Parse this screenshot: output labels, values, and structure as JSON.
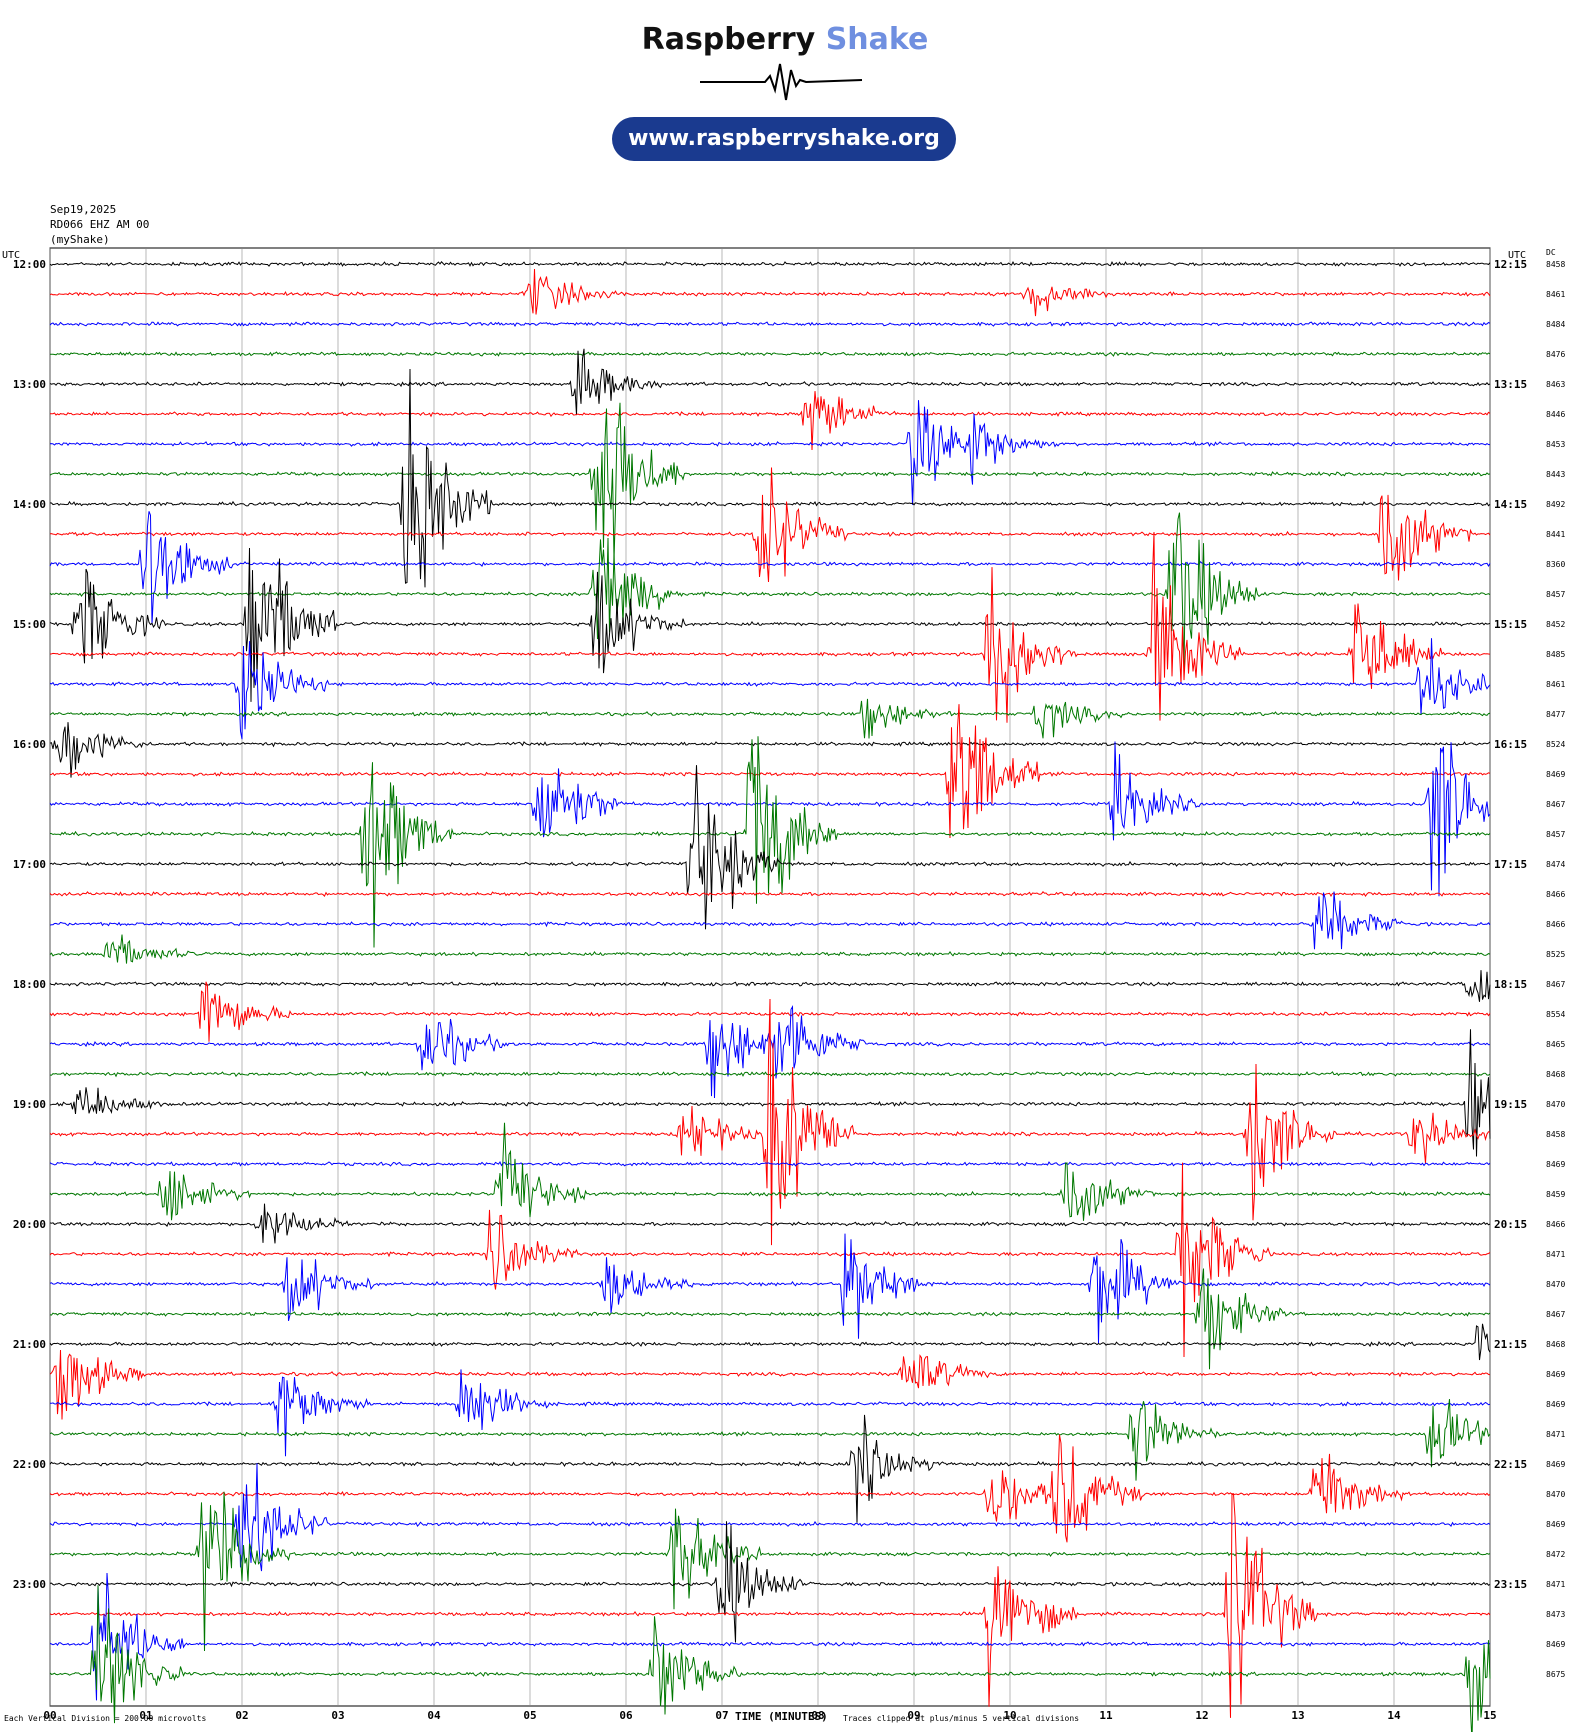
{
  "logo": {
    "brand_part1": "Raspberry",
    "brand_part2": "Shake",
    "url": "www.raspberryshake.org"
  },
  "header": {
    "date": "Sep19,2025",
    "station": "RD066 EHZ AM 00",
    "network": "(myShake)"
  },
  "colors": [
    "#000000",
    "#ff0000",
    "#0000ff",
    "#007700"
  ],
  "chart_data": {
    "type": "line",
    "title": "",
    "xlabel": "TIME (MINUTES)",
    "x_ticks": [
      "00",
      "01",
      "02",
      "03",
      "04",
      "05",
      "06",
      "07",
      "08",
      "09",
      "10",
      "11",
      "12",
      "13",
      "14",
      "15"
    ],
    "xlim": [
      0,
      15
    ],
    "left_axis_label": "UTC",
    "right_axis_label": "UTC",
    "dc_label": "DC",
    "left_hour_labels": [
      "12:00",
      "13:00",
      "14:00",
      "15:00",
      "16:00",
      "17:00",
      "18:00",
      "19:00",
      "20:00",
      "21:00",
      "22:00",
      "23:00"
    ],
    "right_hour_labels": [
      "12:15",
      "13:15",
      "14:15",
      "15:15",
      "16:15",
      "17:15",
      "18:15",
      "19:15",
      "20:15",
      "21:15",
      "22:15",
      "23:15"
    ],
    "dc_values": [
      "8458",
      "8461",
      "8484",
      "8476",
      "8463",
      "8446",
      "8453",
      "8443",
      "8492",
      "8441",
      "8360",
      "8457",
      "8452",
      "8485",
      "8461",
      "8477",
      "8524",
      "8469",
      "8467",
      "8457",
      "8474",
      "8466",
      "8466",
      "8525",
      "8467",
      "8554",
      "8465",
      "8468",
      "8470",
      "8458",
      "8469",
      "8459",
      "8466",
      "8471",
      "8470",
      "8467",
      "8468",
      "8469",
      "8469",
      "8471",
      "8469",
      "8470",
      "8469",
      "8472",
      "8471",
      "8473",
      "8469",
      "8675"
    ],
    "scale_note": "Each Vertical Division = 200.00 microvolts",
    "clip_note": "Traces clipped at plus/minus 5 vertical divisions",
    "events": [
      {
        "row": 1,
        "minute": 5.0,
        "amp": 0.9
      },
      {
        "row": 1,
        "minute": 10.2,
        "amp": 0.8
      },
      {
        "row": 4,
        "minute": 5.5,
        "amp": 1.2
      },
      {
        "row": 5,
        "minute": 7.9,
        "amp": 1.3
      },
      {
        "row": 6,
        "minute": 9.0,
        "amp": 2.0
      },
      {
        "row": 6,
        "minute": 9.6,
        "amp": 1.0
      },
      {
        "row": 7,
        "minute": 5.7,
        "amp": 4.5
      },
      {
        "row": 8,
        "minute": 3.7,
        "amp": 4.5
      },
      {
        "row": 9,
        "minute": 7.4,
        "amp": 2.5
      },
      {
        "row": 9,
        "minute": 13.9,
        "amp": 2.5
      },
      {
        "row": 10,
        "minute": 1.0,
        "amp": 2.5
      },
      {
        "row": 11,
        "minute": 5.7,
        "amp": 3.0
      },
      {
        "row": 11,
        "minute": 11.7,
        "amp": 3.5
      },
      {
        "row": 12,
        "minute": 0.3,
        "amp": 2.2
      },
      {
        "row": 12,
        "minute": 2.1,
        "amp": 4.5
      },
      {
        "row": 12,
        "minute": 5.7,
        "amp": 2.0
      },
      {
        "row": 13,
        "minute": 9.8,
        "amp": 3.0
      },
      {
        "row": 13,
        "minute": 11.5,
        "amp": 3.0
      },
      {
        "row": 13,
        "minute": 13.6,
        "amp": 2.5
      },
      {
        "row": 14,
        "minute": 2.0,
        "amp": 2.0
      },
      {
        "row": 14,
        "minute": 14.3,
        "amp": 1.5
      },
      {
        "row": 15,
        "minute": 8.5,
        "amp": 0.8
      },
      {
        "row": 15,
        "minute": 10.3,
        "amp": 0.8
      },
      {
        "row": 16,
        "minute": 0.1,
        "amp": 1.5
      },
      {
        "row": 17,
        "minute": 9.4,
        "amp": 4.0
      },
      {
        "row": 18,
        "minute": 5.1,
        "amp": 2.5
      },
      {
        "row": 18,
        "minute": 11.1,
        "amp": 1.5
      },
      {
        "row": 18,
        "minute": 14.4,
        "amp": 3.5
      },
      {
        "row": 19,
        "minute": 3.3,
        "amp": 4.0
      },
      {
        "row": 19,
        "minute": 7.3,
        "amp": 4.5
      },
      {
        "row": 20,
        "minute": 6.7,
        "amp": 3.5
      },
      {
        "row": 22,
        "minute": 13.2,
        "amp": 1.5
      },
      {
        "row": 23,
        "minute": 0.6,
        "amp": 0.8
      },
      {
        "row": 24,
        "minute": 14.8,
        "amp": 1.2
      },
      {
        "row": 25,
        "minute": 1.6,
        "amp": 1.5
      },
      {
        "row": 26,
        "minute": 3.9,
        "amp": 1.5
      },
      {
        "row": 26,
        "minute": 6.9,
        "amp": 1.8
      },
      {
        "row": 26,
        "minute": 7.6,
        "amp": 2.0
      },
      {
        "row": 28,
        "minute": 0.3,
        "amp": 0.8
      },
      {
        "row": 28,
        "minute": 14.8,
        "amp": 2.5
      },
      {
        "row": 29,
        "minute": 7.5,
        "amp": 4.5
      },
      {
        "row": 29,
        "minute": 6.6,
        "amp": 1.2
      },
      {
        "row": 29,
        "minute": 12.5,
        "amp": 3.0
      },
      {
        "row": 29,
        "minute": 14.2,
        "amp": 1.0
      },
      {
        "row": 31,
        "minute": 1.2,
        "amp": 1.2
      },
      {
        "row": 31,
        "minute": 4.7,
        "amp": 1.8
      },
      {
        "row": 31,
        "minute": 10.6,
        "amp": 1.5
      },
      {
        "row": 32,
        "minute": 2.2,
        "amp": 1.0
      },
      {
        "row": 33,
        "minute": 4.6,
        "amp": 1.5
      },
      {
        "row": 33,
        "minute": 11.8,
        "amp": 3.0
      },
      {
        "row": 34,
        "minute": 2.5,
        "amp": 1.5
      },
      {
        "row": 34,
        "minute": 5.8,
        "amp": 1.0
      },
      {
        "row": 34,
        "minute": 8.3,
        "amp": 2.0
      },
      {
        "row": 34,
        "minute": 10.9,
        "amp": 2.5
      },
      {
        "row": 35,
        "minute": 12.0,
        "amp": 2.0
      },
      {
        "row": 36,
        "minute": 14.9,
        "amp": 1.0
      },
      {
        "row": 37,
        "minute": 0.1,
        "amp": 1.8
      },
      {
        "row": 37,
        "minute": 8.9,
        "amp": 1.2
      },
      {
        "row": 38,
        "minute": 2.4,
        "amp": 1.5
      },
      {
        "row": 38,
        "minute": 4.3,
        "amp": 1.5
      },
      {
        "row": 39,
        "minute": 11.3,
        "amp": 1.5
      },
      {
        "row": 39,
        "minute": 14.4,
        "amp": 1.5
      },
      {
        "row": 40,
        "minute": 8.4,
        "amp": 1.5
      },
      {
        "row": 41,
        "minute": 10.5,
        "amp": 2.5
      },
      {
        "row": 41,
        "minute": 13.2,
        "amp": 2.0
      },
      {
        "row": 41,
        "minute": 9.8,
        "amp": 1.5
      },
      {
        "row": 42,
        "minute": 2.0,
        "amp": 2.5
      },
      {
        "row": 43,
        "minute": 1.6,
        "amp": 3.0
      },
      {
        "row": 43,
        "minute": 6.5,
        "amp": 2.0
      },
      {
        "row": 44,
        "minute": 7.0,
        "amp": 2.0
      },
      {
        "row": 45,
        "minute": 9.8,
        "amp": 3.0
      },
      {
        "row": 45,
        "minute": 12.3,
        "amp": 4.5
      },
      {
        "row": 46,
        "minute": 0.5,
        "amp": 2.5
      },
      {
        "row": 47,
        "minute": 0.5,
        "amp": 3.0
      },
      {
        "row": 47,
        "minute": 6.3,
        "amp": 2.0
      },
      {
        "row": 47,
        "minute": 14.8,
        "amp": 2.5
      }
    ]
  }
}
